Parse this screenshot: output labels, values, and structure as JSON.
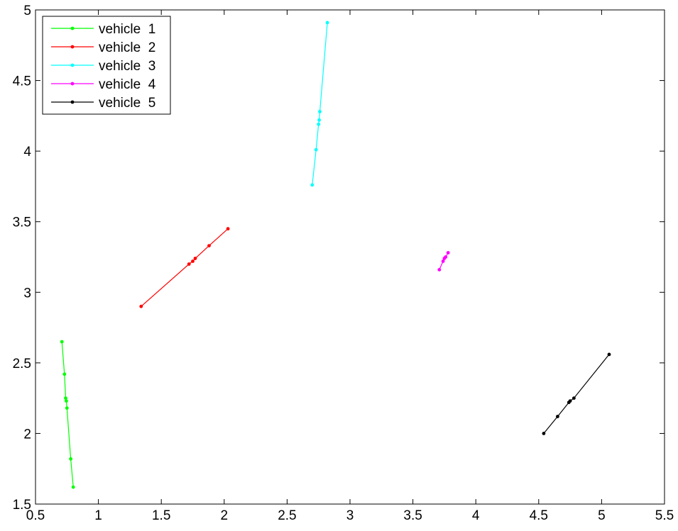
{
  "chart_data": {
    "type": "line",
    "title": "",
    "xlabel": "",
    "ylabel": "",
    "xlim": [
      0.5,
      5.5
    ],
    "ylim": [
      1.5,
      5
    ],
    "xticks": [
      "0.5",
      "1",
      "1.5",
      "2",
      "2.5",
      "3",
      "3.5",
      "4",
      "4.5",
      "5",
      "5.5"
    ],
    "yticks": [
      "1.5",
      "2",
      "2.5",
      "3",
      "3.5",
      "4",
      "4.5",
      "5"
    ],
    "grid": false,
    "legend_position": "top-left",
    "series": [
      {
        "name": "vehicle  1",
        "color": "#00ff00",
        "points": [
          [
            0.71,
            2.65
          ],
          [
            0.73,
            2.42
          ],
          [
            0.74,
            2.25
          ],
          [
            0.745,
            2.23
          ],
          [
            0.75,
            2.18
          ],
          [
            0.78,
            1.82
          ],
          [
            0.8,
            1.62
          ]
        ]
      },
      {
        "name": "vehicle  2",
        "color": "#ff0000",
        "points": [
          [
            1.34,
            2.9
          ],
          [
            1.72,
            3.2
          ],
          [
            1.75,
            3.22
          ],
          [
            1.77,
            3.24
          ],
          [
            1.88,
            3.33
          ],
          [
            2.03,
            3.45
          ]
        ]
      },
      {
        "name": "vehicle  3",
        "color": "#00ffff",
        "points": [
          [
            2.7,
            3.76
          ],
          [
            2.73,
            4.01
          ],
          [
            2.75,
            4.19
          ],
          [
            2.755,
            4.22
          ],
          [
            2.76,
            4.28
          ],
          [
            2.82,
            4.91
          ]
        ]
      },
      {
        "name": "vehicle  4",
        "color": "#ff00ff",
        "points": [
          [
            3.71,
            3.16
          ],
          [
            3.74,
            3.22
          ],
          [
            3.75,
            3.24
          ],
          [
            3.76,
            3.25
          ],
          [
            3.78,
            3.28
          ]
        ]
      },
      {
        "name": "vehicle  5",
        "color": "#000000",
        "points": [
          [
            4.54,
            2.0
          ],
          [
            4.65,
            2.12
          ],
          [
            4.74,
            2.22
          ],
          [
            4.75,
            2.23
          ],
          [
            4.78,
            2.25
          ],
          [
            5.06,
            2.56
          ]
        ]
      }
    ]
  }
}
